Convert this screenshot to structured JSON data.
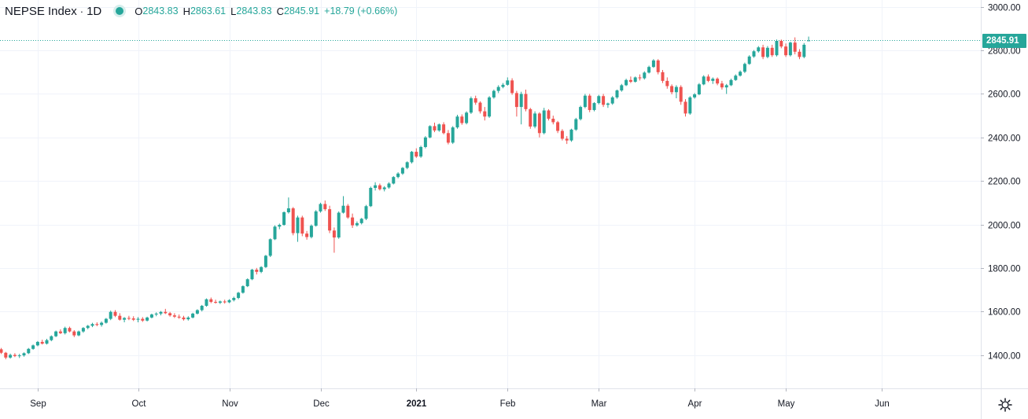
{
  "symbol": "NEPSE Index",
  "interval": "1D",
  "ohlc": {
    "o_label": "O",
    "o": "2843.83",
    "h_label": "H",
    "h": "2863.61",
    "l_label": "L",
    "l": "2843.83",
    "c_label": "C",
    "c": "2845.91",
    "change": "+18.79 (+0.66%)"
  },
  "last_price_label": "2845.91",
  "colors": {
    "up": "#26a69a",
    "down": "#ef5350",
    "grid": "#f0f3fa",
    "text": "#131722"
  },
  "icons": {
    "settings": "gear-icon",
    "status": "market-status-dot"
  },
  "chart_data": {
    "type": "candlestick",
    "title": "NEPSE Index",
    "xlabel": "",
    "ylabel": "",
    "ylim": [
      1250,
      3050
    ],
    "y_ticks": [
      1400,
      1600,
      1800,
      2000,
      2200,
      2400,
      2600,
      2800,
      3000
    ],
    "y_tick_labels": [
      "1400.00",
      "1600.00",
      "1800.00",
      "2000.00",
      "2200.00",
      "2400.00",
      "2600.00",
      "2800.00",
      "3000.00"
    ],
    "x_tick_labels": [
      {
        "label": "Sep",
        "index": 8
      },
      {
        "label": "Oct",
        "index": 30
      },
      {
        "label": "Nov",
        "index": 50
      },
      {
        "label": "Dec",
        "index": 70
      },
      {
        "label": "2021",
        "index": 91
      },
      {
        "label": "Feb",
        "index": 111
      },
      {
        "label": "Mar",
        "index": 131
      },
      {
        "label": "Apr",
        "index": 152
      },
      {
        "label": "May",
        "index": 172
      },
      {
        "label": "Jun",
        "index": 193
      }
    ],
    "last_price": 2845.91,
    "grid": true,
    "candles": [
      [
        1426,
        1432,
        1404,
        1410
      ],
      [
        1410,
        1414,
        1380,
        1388
      ],
      [
        1388,
        1406,
        1383,
        1400
      ],
      [
        1400,
        1408,
        1390,
        1395
      ],
      [
        1395,
        1405,
        1386,
        1398
      ],
      [
        1398,
        1412,
        1392,
        1408
      ],
      [
        1408,
        1432,
        1404,
        1428
      ],
      [
        1428,
        1448,
        1424,
        1444
      ],
      [
        1444,
        1464,
        1440,
        1460
      ],
      [
        1460,
        1470,
        1448,
        1452
      ],
      [
        1452,
        1474,
        1448,
        1468
      ],
      [
        1468,
        1490,
        1463,
        1486
      ],
      [
        1486,
        1512,
        1482,
        1508
      ],
      [
        1508,
        1518,
        1496,
        1500
      ],
      [
        1500,
        1530,
        1494,
        1524
      ],
      [
        1524,
        1530,
        1504,
        1508
      ],
      [
        1508,
        1514,
        1482,
        1490
      ],
      [
        1490,
        1512,
        1486,
        1508
      ],
      [
        1508,
        1528,
        1502,
        1524
      ],
      [
        1524,
        1538,
        1518,
        1534
      ],
      [
        1534,
        1548,
        1528,
        1542
      ],
      [
        1542,
        1550,
        1532,
        1538
      ],
      [
        1538,
        1554,
        1530,
        1548
      ],
      [
        1548,
        1570,
        1544,
        1566
      ],
      [
        1566,
        1604,
        1560,
        1598
      ],
      [
        1598,
        1606,
        1574,
        1580
      ],
      [
        1580,
        1592,
        1558,
        1562
      ],
      [
        1562,
        1574,
        1550,
        1570
      ],
      [
        1570,
        1580,
        1560,
        1568
      ],
      [
        1568,
        1578,
        1556,
        1562
      ],
      [
        1562,
        1574,
        1550,
        1566
      ],
      [
        1566,
        1574,
        1552,
        1558
      ],
      [
        1558,
        1576,
        1554,
        1572
      ],
      [
        1572,
        1590,
        1568,
        1586
      ],
      [
        1586,
        1596,
        1578,
        1590
      ],
      [
        1590,
        1602,
        1582,
        1598
      ],
      [
        1598,
        1612,
        1588,
        1592
      ],
      [
        1592,
        1598,
        1576,
        1582
      ],
      [
        1582,
        1592,
        1570,
        1576
      ],
      [
        1576,
        1586,
        1566,
        1572
      ],
      [
        1572,
        1580,
        1558,
        1564
      ],
      [
        1564,
        1578,
        1558,
        1572
      ],
      [
        1572,
        1594,
        1568,
        1590
      ],
      [
        1590,
        1610,
        1586,
        1606
      ],
      [
        1606,
        1630,
        1600,
        1626
      ],
      [
        1626,
        1660,
        1622,
        1656
      ],
      [
        1656,
        1664,
        1638,
        1644
      ],
      [
        1644,
        1654,
        1636,
        1640
      ],
      [
        1640,
        1650,
        1634,
        1646
      ],
      [
        1646,
        1654,
        1636,
        1642
      ],
      [
        1642,
        1656,
        1638,
        1652
      ],
      [
        1652,
        1668,
        1646,
        1662
      ],
      [
        1662,
        1690,
        1656,
        1686
      ],
      [
        1686,
        1720,
        1682,
        1716
      ],
      [
        1716,
        1752,
        1712,
        1748
      ],
      [
        1748,
        1796,
        1744,
        1792
      ],
      [
        1792,
        1800,
        1770,
        1782
      ],
      [
        1782,
        1808,
        1776,
        1804
      ],
      [
        1804,
        1860,
        1800,
        1856
      ],
      [
        1856,
        1936,
        1850,
        1932
      ],
      [
        1932,
        1996,
        1928,
        1990
      ],
      [
        1990,
        2004,
        1978,
        1998
      ],
      [
        1998,
        2060,
        1994,
        2056
      ],
      [
        2056,
        2124,
        2050,
        2074
      ],
      [
        2074,
        2080,
        1950,
        1960
      ],
      [
        1960,
        2040,
        1920,
        2032
      ],
      [
        2032,
        2040,
        1946,
        1958
      ],
      [
        1958,
        1970,
        1930,
        1942
      ],
      [
        1942,
        2000,
        1936,
        1994
      ],
      [
        1994,
        2066,
        1990,
        2060
      ],
      [
        2060,
        2100,
        2054,
        2094
      ],
      [
        2094,
        2110,
        2062,
        2070
      ],
      [
        2070,
        2086,
        1960,
        1972
      ],
      [
        1972,
        1986,
        1870,
        1940
      ],
      [
        1940,
        2060,
        1934,
        2054
      ],
      [
        2054,
        2130,
        2050,
        2086
      ],
      [
        2086,
        2094,
        2026,
        2032
      ],
      [
        2032,
        2050,
        1984,
        1996
      ],
      [
        1996,
        2014,
        1990,
        2006
      ],
      [
        2006,
        2030,
        2000,
        2026
      ],
      [
        2026,
        2090,
        2020,
        2084
      ],
      [
        2084,
        2174,
        2080,
        2168
      ],
      [
        2168,
        2194,
        2156,
        2180
      ],
      [
        2180,
        2188,
        2156,
        2162
      ],
      [
        2162,
        2176,
        2152,
        2170
      ],
      [
        2170,
        2194,
        2164,
        2188
      ],
      [
        2188,
        2222,
        2184,
        2218
      ],
      [
        2218,
        2240,
        2212,
        2234
      ],
      [
        2234,
        2264,
        2228,
        2260
      ],
      [
        2260,
        2290,
        2254,
        2286
      ],
      [
        2286,
        2338,
        2280,
        2334
      ],
      [
        2334,
        2350,
        2306,
        2312
      ],
      [
        2312,
        2362,
        2306,
        2356
      ],
      [
        2356,
        2406,
        2350,
        2400
      ],
      [
        2400,
        2456,
        2396,
        2452
      ],
      [
        2452,
        2468,
        2424,
        2432
      ],
      [
        2432,
        2464,
        2426,
        2460
      ],
      [
        2460,
        2470,
        2414,
        2420
      ],
      [
        2420,
        2434,
        2368,
        2376
      ],
      [
        2376,
        2452,
        2370,
        2446
      ],
      [
        2446,
        2504,
        2440,
        2496
      ],
      [
        2496,
        2506,
        2458,
        2466
      ],
      [
        2466,
        2520,
        2460,
        2514
      ],
      [
        2514,
        2588,
        2508,
        2580
      ],
      [
        2580,
        2592,
        2550,
        2560
      ],
      [
        2560,
        2566,
        2510,
        2520
      ],
      [
        2520,
        2540,
        2478,
        2496
      ],
      [
        2496,
        2590,
        2490,
        2584
      ],
      [
        2584,
        2620,
        2578,
        2614
      ],
      [
        2614,
        2640,
        2604,
        2632
      ],
      [
        2632,
        2650,
        2626,
        2642
      ],
      [
        2642,
        2676,
        2638,
        2662
      ],
      [
        2662,
        2672,
        2596,
        2604
      ],
      [
        2604,
        2614,
        2496,
        2540
      ],
      [
        2540,
        2610,
        2460,
        2600
      ],
      [
        2600,
        2620,
        2520,
        2530
      ],
      [
        2530,
        2536,
        2440,
        2450
      ],
      [
        2450,
        2520,
        2442,
        2510
      ],
      [
        2510,
        2516,
        2400,
        2420
      ],
      [
        2420,
        2536,
        2414,
        2524
      ],
      [
        2524,
        2530,
        2478,
        2486
      ],
      [
        2486,
        2500,
        2460,
        2470
      ],
      [
        2470,
        2476,
        2420,
        2430
      ],
      [
        2430,
        2438,
        2386,
        2394
      ],
      [
        2394,
        2406,
        2370,
        2386
      ],
      [
        2386,
        2440,
        2380,
        2436
      ],
      [
        2436,
        2490,
        2430,
        2484
      ],
      [
        2484,
        2546,
        2478,
        2540
      ],
      [
        2540,
        2600,
        2534,
        2592
      ],
      [
        2592,
        2600,
        2516,
        2526
      ],
      [
        2526,
        2562,
        2520,
        2558
      ],
      [
        2558,
        2596,
        2552,
        2590
      ],
      [
        2590,
        2600,
        2540,
        2550
      ],
      [
        2550,
        2560,
        2536,
        2556
      ],
      [
        2556,
        2590,
        2550,
        2584
      ],
      [
        2584,
        2620,
        2578,
        2616
      ],
      [
        2616,
        2646,
        2610,
        2640
      ],
      [
        2640,
        2670,
        2636,
        2664
      ],
      [
        2664,
        2680,
        2650,
        2656
      ],
      [
        2656,
        2680,
        2652,
        2676
      ],
      [
        2676,
        2690,
        2662,
        2672
      ],
      [
        2672,
        2704,
        2666,
        2698
      ],
      [
        2698,
        2730,
        2694,
        2724
      ],
      [
        2724,
        2760,
        2720,
        2754
      ],
      [
        2754,
        2760,
        2690,
        2700
      ],
      [
        2700,
        2710,
        2650,
        2660
      ],
      [
        2660,
        2676,
        2624,
        2636
      ],
      [
        2636,
        2644,
        2598,
        2608
      ],
      [
        2608,
        2640,
        2580,
        2632
      ],
      [
        2632,
        2640,
        2550,
        2564
      ],
      [
        2564,
        2576,
        2496,
        2510
      ],
      [
        2510,
        2590,
        2504,
        2584
      ],
      [
        2584,
        2604,
        2578,
        2598
      ],
      [
        2598,
        2650,
        2594,
        2644
      ],
      [
        2644,
        2686,
        2640,
        2680
      ],
      [
        2680,
        2690,
        2654,
        2660
      ],
      [
        2660,
        2676,
        2646,
        2670
      ],
      [
        2670,
        2676,
        2640,
        2648
      ],
      [
        2648,
        2660,
        2620,
        2630
      ],
      [
        2630,
        2646,
        2600,
        2640
      ],
      [
        2640,
        2670,
        2636,
        2664
      ],
      [
        2664,
        2690,
        2660,
        2684
      ],
      [
        2684,
        2708,
        2680,
        2702
      ],
      [
        2702,
        2744,
        2696,
        2738
      ],
      [
        2738,
        2778,
        2734,
        2772
      ],
      [
        2772,
        2802,
        2766,
        2796
      ],
      [
        2796,
        2820,
        2790,
        2814
      ],
      [
        2814,
        2826,
        2760,
        2770
      ],
      [
        2770,
        2820,
        2764,
        2812
      ],
      [
        2812,
        2826,
        2770,
        2778
      ],
      [
        2778,
        2850,
        2772,
        2844
      ],
      [
        2844,
        2850,
        2810,
        2818
      ],
      [
        2818,
        2832,
        2770,
        2778
      ],
      [
        2778,
        2840,
        2772,
        2836
      ],
      [
        2836,
        2860,
        2782,
        2794
      ],
      [
        2794,
        2806,
        2760,
        2770
      ],
      [
        2770,
        2834,
        2764,
        2826
      ],
      [
        2843.83,
        2863.61,
        2843.83,
        2845.91
      ]
    ]
  }
}
